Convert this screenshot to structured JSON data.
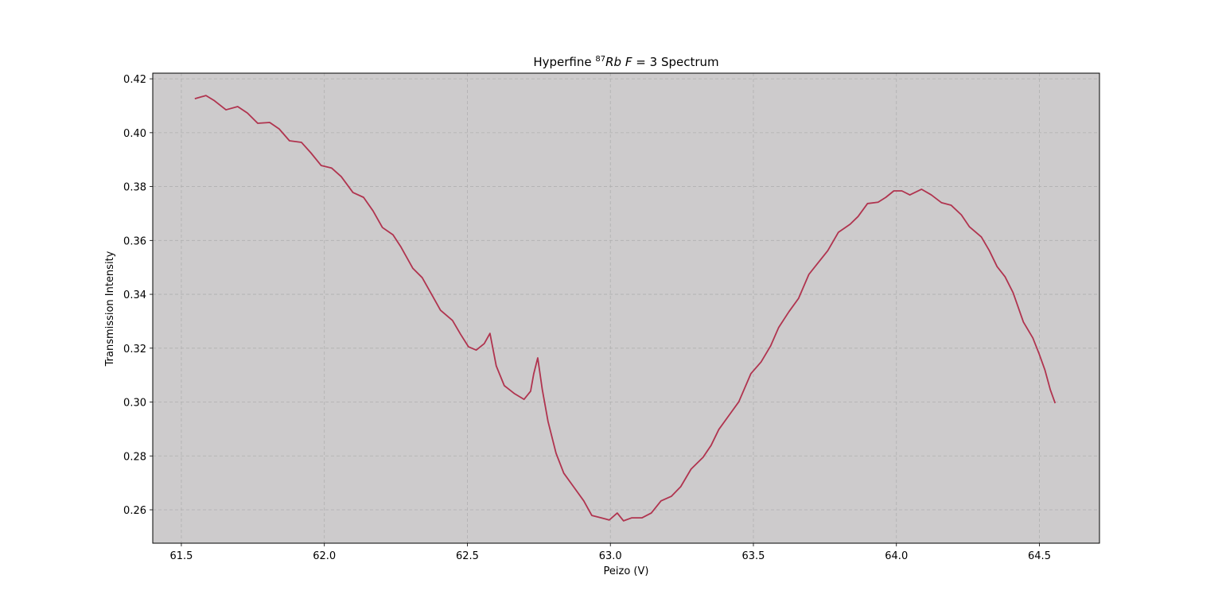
{
  "chart_data": {
    "type": "line",
    "title_parts": [
      "Hyperfine",
      "87",
      "Rb",
      "F",
      "= 3",
      "Spectrum"
    ],
    "x_label": "Peizo (V)",
    "y_label": "Transmission Intensity",
    "background": "#cdcbcc",
    "grid": true,
    "xlim": [
      61.4,
      64.71
    ],
    "ylim": [
      0.2476,
      0.4221
    ],
    "xticks": [
      61.5,
      {
        "value": 62,
        "label": "62.0"
      },
      62.5,
      {
        "value": 63,
        "label": "63.0"
      },
      63.5,
      {
        "value": 64,
        "label": "64.0"
      },
      64.5
    ],
    "yticks": [
      0.26,
      0.28,
      {
        "value": 0.3,
        "label": "0.30"
      },
      0.32,
      0.34,
      0.36,
      0.38,
      {
        "value": 0.4,
        "label": "0.40"
      },
      0.42
    ],
    "x": [
      61.547,
      61.586,
      61.614,
      61.656,
      61.697,
      61.731,
      61.767,
      61.809,
      61.842,
      61.878,
      61.92,
      61.953,
      61.989,
      62.025,
      62.059,
      62.1,
      62.137,
      62.17,
      62.203,
      62.24,
      62.267,
      62.309,
      62.342,
      62.378,
      62.406,
      62.448,
      62.476,
      62.504,
      62.531,
      62.559,
      62.579,
      62.601,
      62.629,
      62.665,
      62.698,
      62.721,
      62.732,
      62.746,
      62.762,
      62.782,
      62.81,
      62.837,
      62.871,
      62.907,
      62.935,
      62.968,
      62.996,
      63.024,
      63.046,
      63.074,
      63.11,
      63.143,
      63.177,
      63.213,
      63.246,
      63.282,
      63.324,
      63.352,
      63.379,
      63.415,
      63.449,
      63.491,
      63.527,
      63.56,
      63.588,
      63.624,
      63.658,
      63.694,
      63.727,
      63.76,
      63.797,
      63.838,
      63.866,
      63.899,
      63.936,
      63.963,
      63.991,
      64.019,
      64.047,
      64.088,
      64.122,
      64.158,
      64.191,
      64.227,
      64.255,
      64.297,
      64.325,
      64.352,
      64.38,
      64.408,
      64.444,
      64.477,
      64.499,
      64.519,
      64.538,
      64.555
    ],
    "series": [
      {
        "color": "#b0344f",
        "values": [
          0.4126,
          0.4138,
          0.412,
          0.4085,
          0.4097,
          0.4073,
          0.4035,
          0.4038,
          0.4014,
          0.397,
          0.3964,
          0.3925,
          0.3878,
          0.3869,
          0.3837,
          0.3778,
          0.376,
          0.371,
          0.3648,
          0.3621,
          0.3577,
          0.3497,
          0.3462,
          0.3394,
          0.3341,
          0.3303,
          0.3252,
          0.3205,
          0.3193,
          0.3217,
          0.3255,
          0.3134,
          0.3061,
          0.3031,
          0.301,
          0.304,
          0.3105,
          0.3164,
          0.3046,
          0.2928,
          0.281,
          0.2736,
          0.2686,
          0.2633,
          0.2579,
          0.257,
          0.2562,
          0.2588,
          0.2559,
          0.257,
          0.257,
          0.2588,
          0.2633,
          0.265,
          0.2686,
          0.2751,
          0.2795,
          0.2839,
          0.2898,
          0.2951,
          0.3001,
          0.3105,
          0.3149,
          0.3208,
          0.3276,
          0.3335,
          0.3385,
          0.3474,
          0.3518,
          0.3562,
          0.363,
          0.366,
          0.3689,
          0.3737,
          0.3742,
          0.376,
          0.3784,
          0.3784,
          0.3769,
          0.379,
          0.3769,
          0.374,
          0.3731,
          0.3695,
          0.3651,
          0.3613,
          0.3562,
          0.3503,
          0.3465,
          0.3406,
          0.3297,
          0.3238,
          0.3179,
          0.312,
          0.3046,
          0.2996
        ]
      }
    ]
  }
}
